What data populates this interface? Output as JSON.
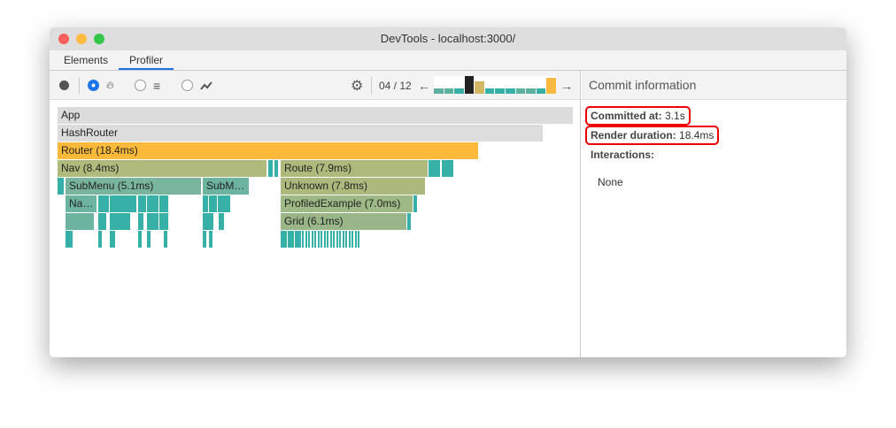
{
  "window": {
    "title": "DevTools - localhost:3000/"
  },
  "tabs": [
    {
      "label": "Elements"
    },
    {
      "label": "Profiler",
      "active": true
    }
  ],
  "toolbar": {
    "commit_counter": "04 / 12",
    "icons": [
      "record-icon",
      "flame-chart-icon",
      "ranked-chart-icon",
      "interactions-chart-icon",
      "settings-icon",
      "arrow-left-icon",
      "arrow-right-icon"
    ],
    "selected_view": "flame"
  },
  "commits": [
    {
      "level": 0.3,
      "color": "#5cb0a0"
    },
    {
      "level": 0.3,
      "color": "#5cb0a0"
    },
    {
      "level": 0.3,
      "color": "#37b0a7"
    },
    {
      "level": 1.0,
      "color": "#222222",
      "selected": true
    },
    {
      "level": 0.7,
      "color": "#d2b865"
    },
    {
      "level": 0.3,
      "color": "#37b0a7"
    },
    {
      "level": 0.3,
      "color": "#37b0a7"
    },
    {
      "level": 0.3,
      "color": "#37b0a7"
    },
    {
      "level": 0.3,
      "color": "#5cb0a0"
    },
    {
      "level": 0.3,
      "color": "#5cb0a0"
    },
    {
      "level": 0.3,
      "color": "#37b0a7"
    },
    {
      "level": 0.9,
      "color": "#f7b93e"
    }
  ],
  "flame": {
    "app": "App",
    "hashrouter": "HashRouter",
    "router": "Router (18.4ms)",
    "nav": "Nav (8.4ms)",
    "route": "Route (7.9ms)",
    "submenu": "SubMenu (5.1ms)",
    "submenu2": "SubM…",
    "unknown": "Unknown (7.8ms)",
    "na": "Na…",
    "profiled": "ProfiledExample (7.0ms)",
    "grid": "Grid (6.1ms)"
  },
  "commit_info": {
    "title": "Commit information",
    "committed_at_label": "Committed at",
    "committed_at": "3.1s",
    "render_duration_label": "Render duration",
    "render_duration": "18.4ms",
    "interactions_label": "Interactions",
    "interactions": "None"
  }
}
